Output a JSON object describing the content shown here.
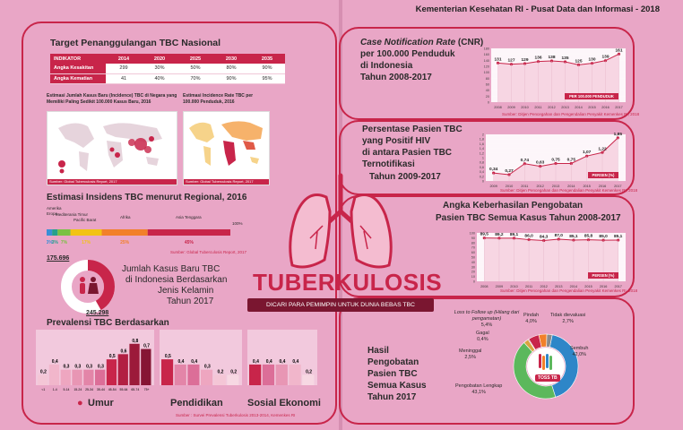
{
  "header": "Kementerian Kesehatan RI - Pusat Data dan Informasi - 2018",
  "main_title": "TUBERKULOSIS",
  "tagline": "DICARI PARA PEMIMPIN UNTUK DUNIA BEBAS TBC",
  "target": {
    "title": "Target Penanggulangan TBC Nasional",
    "columns": [
      "INDIKATOR",
      "2014",
      "2020",
      "2025",
      "2030",
      "2035"
    ],
    "rows": [
      {
        "label": "Angka Kesakitan",
        "values": [
          "299",
          "30%",
          "50%",
          "80%",
          "90%"
        ]
      },
      {
        "label": "Angka Kematian",
        "values": [
          "41",
          "40%",
          "70%",
          "90%",
          "95%"
        ]
      }
    ]
  },
  "map1": {
    "title": "Estimasi Jumlah Kasus Baru (Incidence) TBC di Negara yang Memiliki Paling Sedikit 100.000 Kasus Baru, 2016",
    "source": "Sumber: Global Tuberculosis Report, 2017"
  },
  "map2": {
    "title": "Estimasi Incidence Rate TBC per 100.000 Penduduk, 2016",
    "source": "Sumber: Global Tuberculosis Report, 2017"
  },
  "regional": {
    "title": "Estimasi Insidens TBC menurut Regional, 2016",
    "labels": [
      "Amerika",
      "Eropa",
      "Mediterania Timur",
      "Pacific Barat",
      "Afrika",
      "Asia Tenggara"
    ],
    "values": [
      "3%",
      "3%",
      "7%",
      "17%",
      "25%",
      "45%"
    ],
    "end": "100%",
    "source": "Sumber: Global Tuberculosis Report, 2017",
    "colors": [
      "#3a8fd6",
      "#25a08c",
      "#7ac143",
      "#f2c315",
      "#f2802a",
      "#c8254a"
    ],
    "fractions": [
      0.03,
      0.03,
      0.07,
      0.17,
      0.25,
      0.45
    ]
  },
  "gender": {
    "title": [
      "Jumlah Kasus Baru TBC",
      "di Indonesia Berdasarkan",
      "Jenis Kelamin",
      "Tahun 2017"
    ],
    "male": "175.696",
    "female": "245.298"
  },
  "prevalence": {
    "title": "Prevalensi TBC Berdasarkan",
    "age": {
      "label": "Umur",
      "cats": [
        "<1",
        "1-4",
        "5-14",
        "15-24",
        "25-34",
        "35-44",
        "45-54",
        "55-64",
        "65-74",
        "75+"
      ],
      "values": [
        0.2,
        0.4,
        0.3,
        0.3,
        0.3,
        0.3,
        0.5,
        0.6,
        0.8,
        0.7
      ],
      "labels": [
        "0,2",
        "0,4",
        "0,3",
        "0,3",
        "0,3",
        "0,3",
        "0,5",
        "0,6",
        "0,8",
        "0,7"
      ]
    },
    "edu": {
      "label": "Pendidikan",
      "values": [
        0.5,
        0.4,
        0.4,
        0.3,
        0.2,
        0.2
      ],
      "labels": [
        "0,5",
        "0,4",
        "0,4",
        "0,3",
        "0,2",
        "0,2"
      ]
    },
    "ses": {
      "label": "Sosial Ekonomi",
      "values": [
        0.4,
        0.4,
        0.4,
        0.4,
        0.2
      ],
      "labels": [
        "0,4",
        "0,4",
        "0,4",
        "0,4",
        "0,2"
      ]
    },
    "source": "Sumber : Survei Prevalensi Tuberkulosis 2013-2014, Kemenkes RI"
  },
  "cnr": {
    "title_italic": "Case Notification Rate",
    "title_rest": " (CNR)",
    "title2": "per 100.000 Penduduk",
    "title3": "di Indonesia",
    "title4": "Tahun 2008-2017",
    "years": [
      "2008",
      "2009",
      "2010",
      "2011",
      "2012",
      "2013",
      "2014",
      "2015",
      "2016",
      "2017"
    ],
    "values": [
      131,
      127,
      129,
      136,
      138,
      135,
      125,
      130,
      139,
      161
    ],
    "ymax": 180,
    "ticks": [
      "0",
      "20",
      "40",
      "60",
      "80",
      "100",
      "120",
      "140",
      "160",
      "180"
    ],
    "caption": "PER 100.000 PENDUDUK",
    "source": "Sumber: Ditjen Pencegahan dan Pengendalian Penyakit Kemenkes RI, 2018"
  },
  "hiv": {
    "title": [
      "Persentase Pasien TBC",
      "yang Positif HIV",
      "di antara Pasien TBC",
      "Ternotifikasi",
      "Tahun 2009-2017"
    ],
    "years": [
      "2009",
      "2010",
      "2011",
      "2012",
      "2013",
      "2014",
      "2015",
      "2016",
      "2017"
    ],
    "values": [
      0.34,
      0.27,
      0.74,
      0.63,
      0.75,
      0.75,
      1.07,
      1.22,
      1.85
    ],
    "labels": [
      "0,34",
      "0,27",
      "0,74",
      "0,63",
      "0,75",
      "0,75",
      "1,07",
      "1,22",
      "1,85"
    ],
    "ymax": 2,
    "ticks": [
      "0",
      "0,2",
      "0,4",
      "0,6",
      "0,8",
      "1",
      "1,2",
      "1,4",
      "1,6",
      "1,8",
      "2"
    ],
    "caption": "PERSEN (%)",
    "source": "Sumber: Ditjen Pencegahan dan Pengendalian Penyakit Kemenkes RI, 2018"
  },
  "success": {
    "title": [
      "Angka Keberhasilan Pengobatan",
      "Pasien TBC Semua Kasus Tahun 2008-2017"
    ],
    "years": [
      "2008",
      "2009",
      "2010",
      "2011",
      "2012",
      "2013",
      "2014",
      "2015",
      "2016",
      "2017"
    ],
    "values": [
      89.5,
      89.2,
      89.1,
      86.0,
      84.3,
      87.0,
      85.1,
      85.8,
      85.0,
      85.1
    ],
    "labels": [
      "89,5",
      "89,2",
      "89,1",
      "86,0",
      "84,3",
      "87,0",
      "85,1",
      "85,8",
      "85,0",
      "85,1"
    ],
    "ymax": 100,
    "ticks": [
      "0",
      "10",
      "20",
      "30",
      "40",
      "50",
      "60",
      "70",
      "80",
      "90",
      "100"
    ],
    "caption": "PERSEN (%)",
    "source": "Sumber: Ditjen Pencegahan dan Pengendalian Penyakit Kemenkes RI, 2018"
  },
  "outcome": {
    "title": [
      "Hasil",
      "Pengobatan",
      "Pasien TBC",
      "Semua Kasus",
      "Tahun 2017"
    ],
    "badge": "TOSS TB",
    "slices": [
      {
        "name": "Sembuh",
        "value": 42.0,
        "label": "42,0%",
        "color": "#2e86c8"
      },
      {
        "name": "Pengobatan Lengkap",
        "value": 43.1,
        "label": "43,1%",
        "color": "#5cb85c"
      },
      {
        "name": "Meninggal",
        "value": 2.5,
        "label": "2,5%",
        "color": "#d9a441"
      },
      {
        "name": "Gagal",
        "value": 0.4,
        "label": "0,4%",
        "color": "#7a1630"
      },
      {
        "name": "Loss to Follow up (Hilang dari pengamatan)",
        "value": 5.4,
        "label": "5,4%",
        "color": "#c8254a"
      },
      {
        "name": "Pindah",
        "value": 4.0,
        "label": "4,0%",
        "color": "#f2802a"
      },
      {
        "name": "Tidak dievaluasi",
        "value": 2.7,
        "label": "2,7%",
        "color": "#8a8a8a"
      }
    ]
  }
}
